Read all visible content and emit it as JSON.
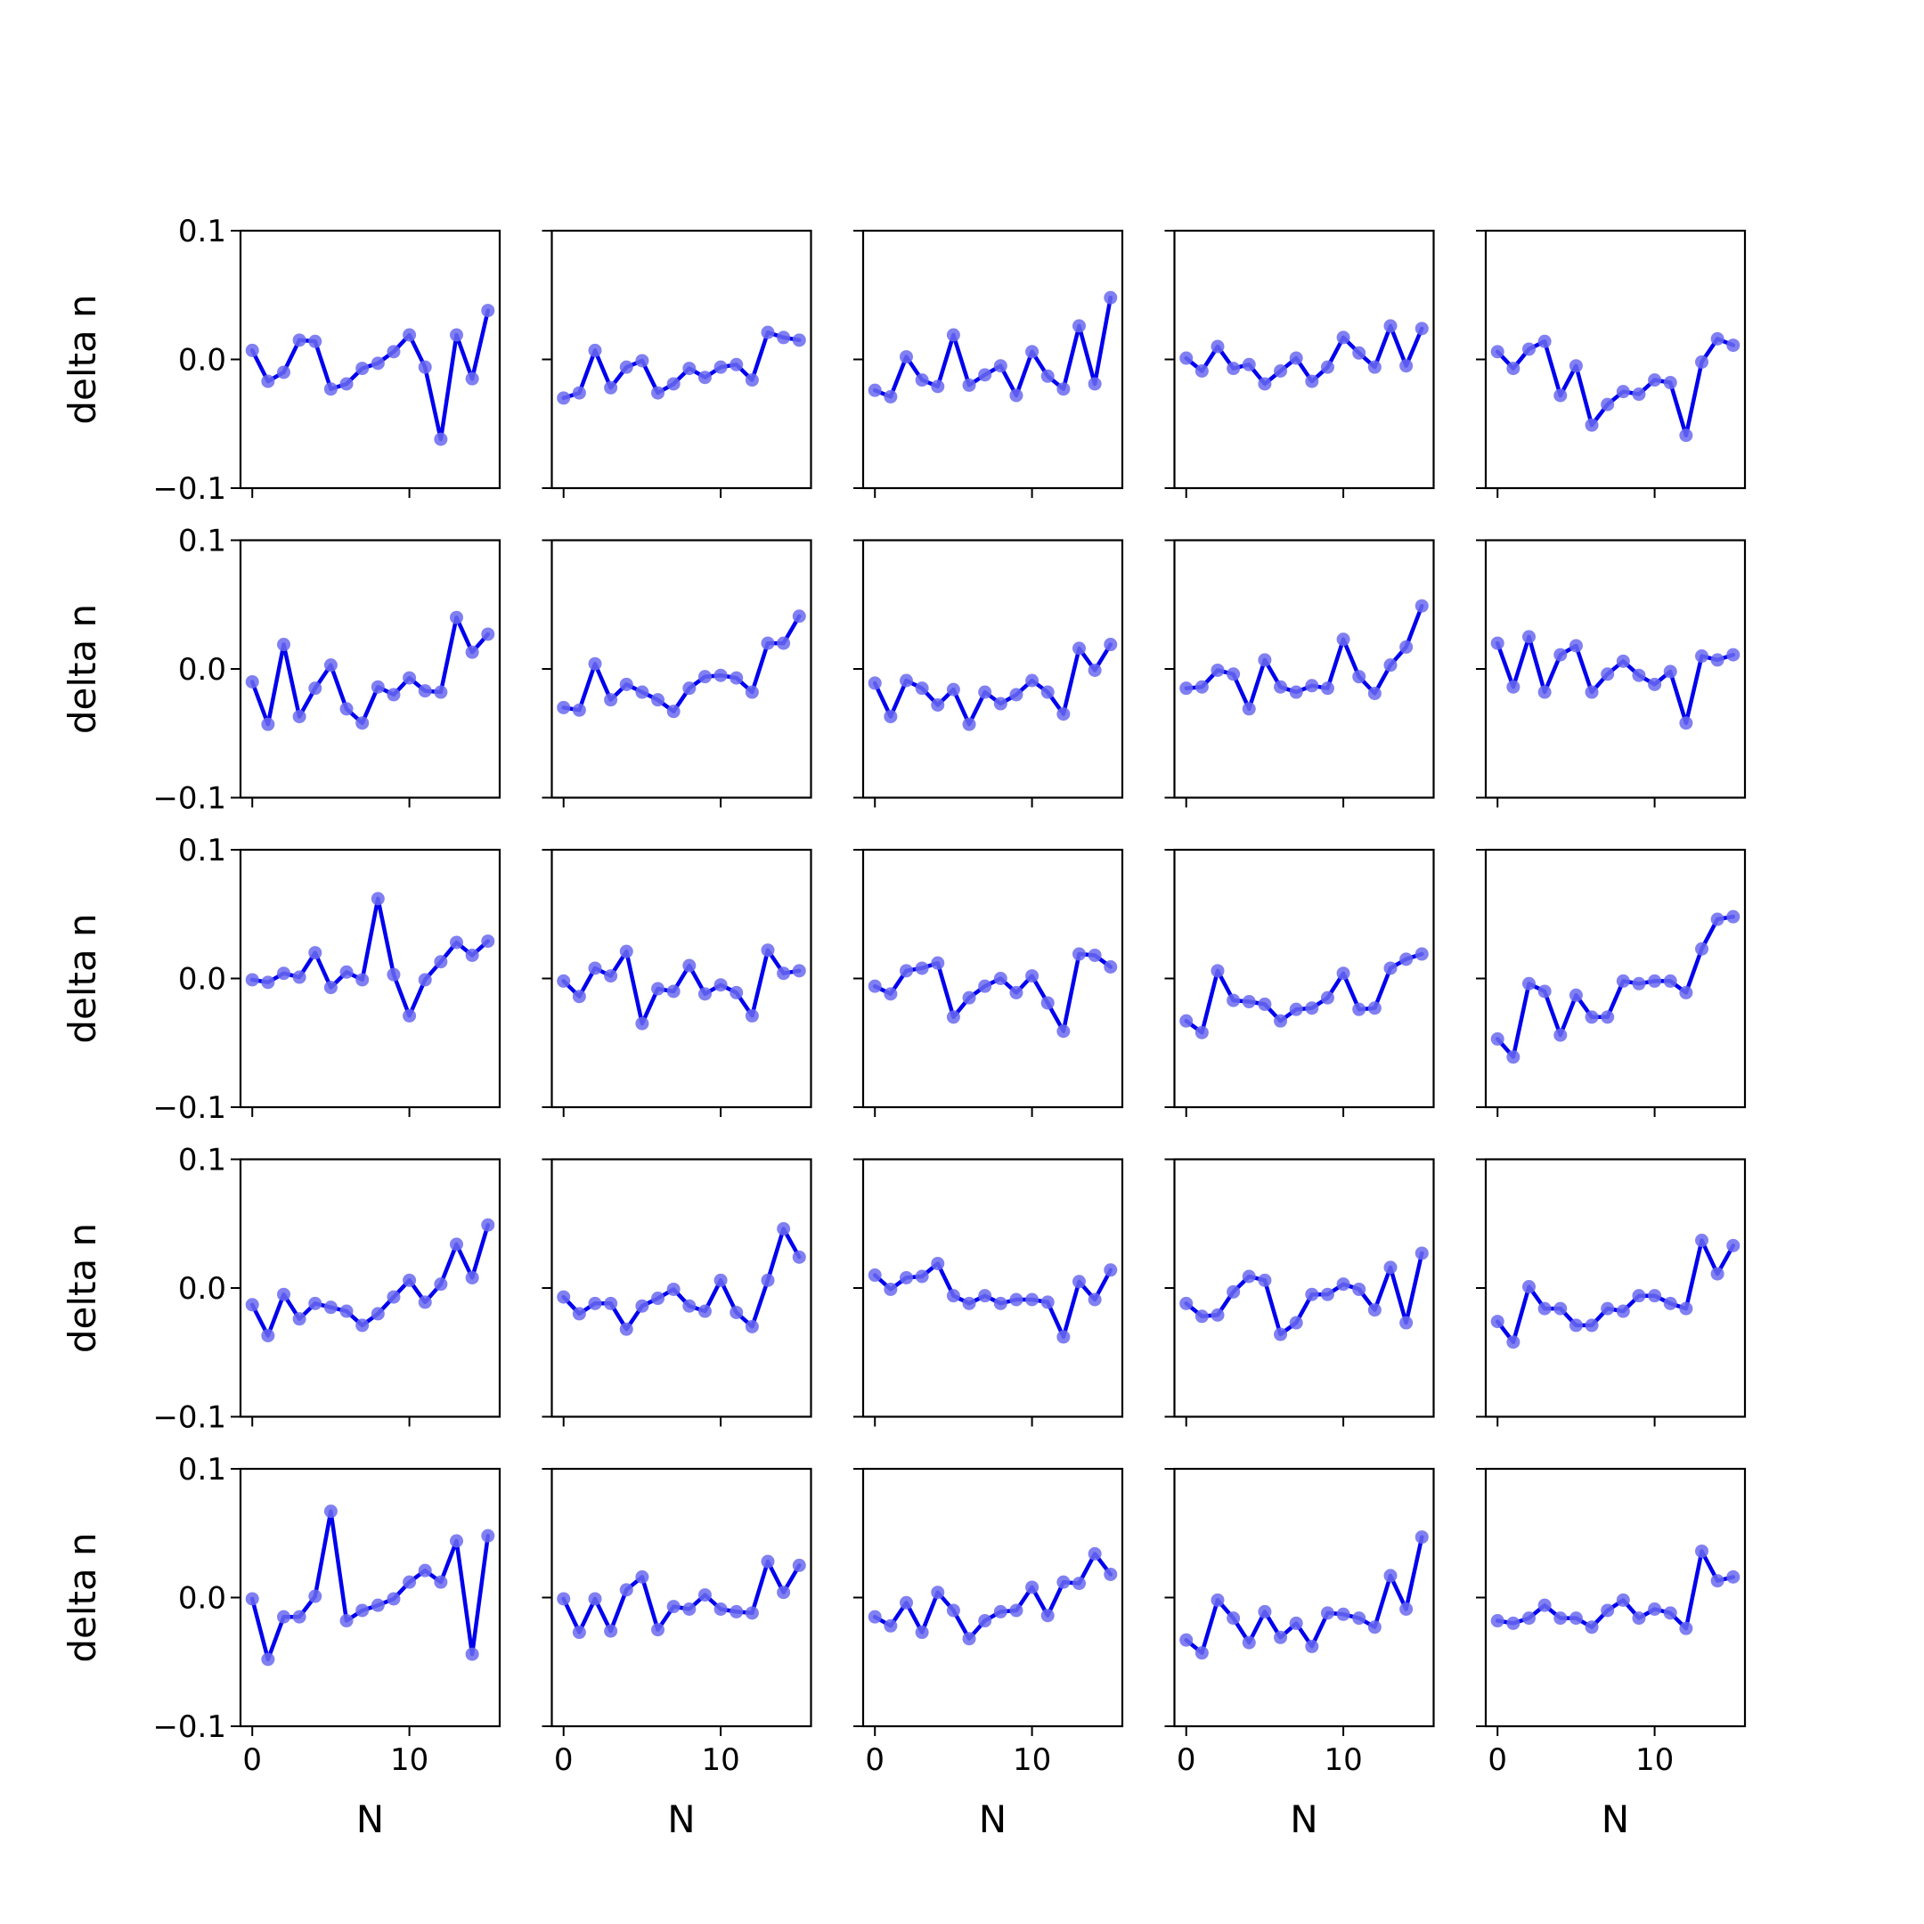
{
  "chart_data": {
    "type": "line",
    "layout": "5x5 grid of small multiples",
    "x": [
      0,
      1,
      2,
      3,
      4,
      5,
      6,
      7,
      8,
      9,
      10,
      11,
      12,
      13,
      14,
      15
    ],
    "xlim": [
      -0.75,
      15.75
    ],
    "ylim": [
      -0.1,
      0.1
    ],
    "xticks": [
      0,
      10
    ],
    "xtick_labels": [
      "0",
      "10"
    ],
    "yticks": [
      -0.1,
      0.0,
      0.1
    ],
    "ytick_labels": [
      "−0.1",
      "0.0",
      "0.1"
    ],
    "xlabel": "N",
    "ylabel": "delta n",
    "line_color": "#0000ee",
    "marker_color": "#6a6af0",
    "grid": false,
    "panels": [
      [
        0.007,
        -0.017,
        -0.01,
        0.015,
        0.014,
        -0.023,
        -0.019,
        -0.007,
        -0.003,
        0.006,
        0.019,
        -0.006,
        -0.062,
        0.019,
        -0.015,
        0.038
      ],
      [
        -0.03,
        -0.026,
        0.007,
        -0.022,
        -0.006,
        -0.001,
        -0.026,
        -0.019,
        -0.007,
        -0.014,
        -0.006,
        -0.004,
        -0.016,
        0.021,
        0.017,
        0.015
      ],
      [
        -0.024,
        -0.029,
        0.002,
        -0.016,
        -0.021,
        0.019,
        -0.02,
        -0.012,
        -0.005,
        -0.028,
        0.006,
        -0.013,
        -0.023,
        0.026,
        -0.019,
        0.048
      ],
      [
        0.001,
        -0.009,
        0.01,
        -0.007,
        -0.004,
        -0.019,
        -0.009,
        0.001,
        -0.017,
        -0.006,
        0.017,
        0.005,
        -0.006,
        0.026,
        -0.005,
        0.024
      ],
      [
        0.006,
        -0.007,
        0.008,
        0.014,
        -0.028,
        -0.005,
        -0.051,
        -0.035,
        -0.025,
        -0.027,
        -0.016,
        -0.018,
        -0.059,
        -0.002,
        0.016,
        0.011
      ],
      [
        -0.01,
        -0.043,
        0.019,
        -0.037,
        -0.015,
        0.003,
        -0.031,
        -0.042,
        -0.014,
        -0.02,
        -0.007,
        -0.017,
        -0.018,
        0.04,
        0.013,
        0.027
      ],
      [
        -0.03,
        -0.032,
        0.004,
        -0.024,
        -0.012,
        -0.018,
        -0.024,
        -0.033,
        -0.015,
        -0.006,
        -0.005,
        -0.007,
        -0.018,
        0.02,
        0.02,
        0.041
      ],
      [
        -0.011,
        -0.037,
        -0.009,
        -0.015,
        -0.028,
        -0.016,
        -0.043,
        -0.018,
        -0.027,
        -0.02,
        -0.009,
        -0.018,
        -0.035,
        0.016,
        -0.001,
        0.019
      ],
      [
        -0.015,
        -0.014,
        -0.001,
        -0.004,
        -0.031,
        0.007,
        -0.014,
        -0.018,
        -0.013,
        -0.015,
        0.023,
        -0.006,
        -0.019,
        0.003,
        0.017,
        0.049
      ],
      [
        0.02,
        -0.014,
        0.025,
        -0.018,
        0.011,
        0.018,
        -0.018,
        -0.004,
        0.006,
        -0.005,
        -0.012,
        -0.002,
        -0.042,
        0.01,
        0.007,
        0.011
      ],
      [
        -0.001,
        -0.003,
        0.004,
        0.001,
        0.02,
        -0.007,
        0.005,
        -0.001,
        0.062,
        0.003,
        -0.029,
        -0.001,
        0.013,
        0.028,
        0.018,
        0.029
      ],
      [
        -0.002,
        -0.014,
        0.008,
        0.002,
        0.021,
        -0.035,
        -0.008,
        -0.01,
        0.01,
        -0.012,
        -0.005,
        -0.011,
        -0.029,
        0.022,
        0.004,
        0.006
      ],
      [
        -0.006,
        -0.012,
        0.006,
        0.008,
        0.012,
        -0.03,
        -0.015,
        -0.006,
        0.0,
        -0.011,
        0.002,
        -0.019,
        -0.041,
        0.019,
        0.018,
        0.009
      ],
      [
        -0.033,
        -0.042,
        0.006,
        -0.017,
        -0.018,
        -0.02,
        -0.033,
        -0.024,
        -0.023,
        -0.015,
        0.004,
        -0.024,
        -0.023,
        0.008,
        0.015,
        0.019
      ],
      [
        -0.047,
        -0.061,
        -0.004,
        -0.01,
        -0.044,
        -0.013,
        -0.03,
        -0.03,
        -0.002,
        -0.004,
        -0.002,
        -0.002,
        -0.011,
        0.023,
        0.046,
        0.048
      ],
      [
        -0.013,
        -0.037,
        -0.005,
        -0.024,
        -0.012,
        -0.015,
        -0.018,
        -0.029,
        -0.02,
        -0.007,
        0.006,
        -0.011,
        0.003,
        0.034,
        0.008,
        0.049
      ],
      [
        -0.007,
        -0.02,
        -0.012,
        -0.012,
        -0.032,
        -0.014,
        -0.008,
        -0.001,
        -0.014,
        -0.018,
        0.006,
        -0.019,
        -0.03,
        0.006,
        0.046,
        0.024
      ],
      [
        0.01,
        -0.001,
        0.008,
        0.009,
        0.019,
        -0.006,
        -0.012,
        -0.006,
        -0.012,
        -0.009,
        -0.009,
        -0.011,
        -0.038,
        0.005,
        -0.009,
        0.014
      ],
      [
        -0.012,
        -0.022,
        -0.021,
        -0.003,
        0.009,
        0.006,
        -0.036,
        -0.027,
        -0.005,
        -0.005,
        0.003,
        -0.001,
        -0.017,
        0.016,
        -0.027,
        0.027
      ],
      [
        -0.026,
        -0.042,
        0.001,
        -0.016,
        -0.016,
        -0.029,
        -0.029,
        -0.016,
        -0.018,
        -0.006,
        -0.006,
        -0.012,
        -0.016,
        0.037,
        0.011,
        0.033
      ],
      [
        -0.001,
        -0.048,
        -0.015,
        -0.015,
        0.001,
        0.067,
        -0.018,
        -0.01,
        -0.006,
        -0.001,
        0.012,
        0.021,
        0.012,
        0.044,
        -0.044,
        0.048
      ],
      [
        -0.001,
        -0.027,
        -0.001,
        -0.026,
        0.006,
        0.016,
        -0.025,
        -0.007,
        -0.009,
        0.002,
        -0.009,
        -0.011,
        -0.012,
        0.028,
        0.004,
        0.025
      ],
      [
        -0.015,
        -0.022,
        -0.004,
        -0.027,
        0.004,
        -0.01,
        -0.032,
        -0.018,
        -0.011,
        -0.01,
        0.008,
        -0.014,
        0.012,
        0.011,
        0.034,
        0.018
      ],
      [
        -0.033,
        -0.043,
        -0.002,
        -0.016,
        -0.035,
        -0.011,
        -0.031,
        -0.02,
        -0.038,
        -0.012,
        -0.013,
        -0.016,
        -0.023,
        0.017,
        -0.009,
        0.047
      ],
      [
        -0.018,
        -0.02,
        -0.016,
        -0.006,
        -0.016,
        -0.016,
        -0.023,
        -0.01,
        -0.002,
        -0.016,
        -0.009,
        -0.012,
        -0.024,
        0.036,
        0.013,
        0.016
      ]
    ]
  }
}
